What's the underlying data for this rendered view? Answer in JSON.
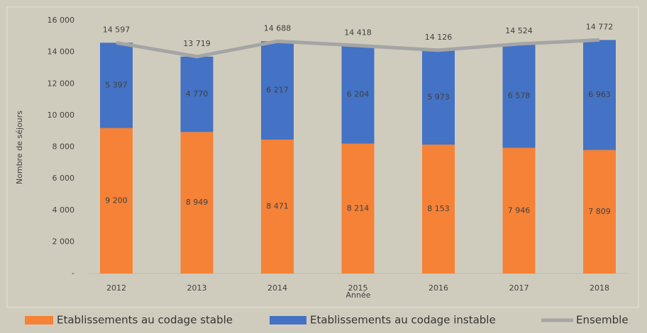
{
  "chart_data": {
    "type": "stacked-bar-line",
    "x_label": "Année",
    "y_label": "Nombre de séjours",
    "categories": [
      "2012",
      "2013",
      "2014",
      "2015",
      "2016",
      "2017",
      "2018"
    ],
    "series": [
      {
        "name": "Etablissements au codage stable",
        "color": "#f58236",
        "kind": "bar",
        "values": [
          9200,
          8949,
          8471,
          8214,
          8153,
          7946,
          7809
        ],
        "value_labels": [
          "9 200",
          "8 949",
          "8 471",
          "8 214",
          "8 153",
          "7 946",
          "7 809"
        ]
      },
      {
        "name": "Etablissements au codage instable",
        "color": "#4472c4",
        "kind": "bar",
        "values": [
          5397,
          4770,
          6217,
          6204,
          5973,
          6578,
          6963
        ],
        "value_labels": [
          "5 397",
          "4 770",
          "6 217",
          "6 204",
          "5 973",
          "6 578",
          "6 963"
        ]
      },
      {
        "name": "Ensemble",
        "color": "#a5a5a5",
        "kind": "line",
        "values": [
          14597,
          13719,
          14688,
          14418,
          14126,
          14524,
          14772
        ],
        "value_labels": [
          "14 597",
          "13 719",
          "14 688",
          "14 418",
          "14 126",
          "14 524",
          "14 772"
        ]
      }
    ],
    "ylim": [
      0,
      16000
    ],
    "yticks": [
      {
        "value": 0,
        "label": "-"
      },
      {
        "value": 2000,
        "label": "2 000"
      },
      {
        "value": 4000,
        "label": "4 000"
      },
      {
        "value": 6000,
        "label": "6 000"
      },
      {
        "value": 8000,
        "label": "8 000"
      },
      {
        "value": 10000,
        "label": "10 000"
      },
      {
        "value": 12000,
        "label": "12 000"
      },
      {
        "value": 14000,
        "label": "14 000"
      },
      {
        "value": 16000,
        "label": "16 000"
      }
    ],
    "grid": false,
    "legend": "bottom"
  }
}
